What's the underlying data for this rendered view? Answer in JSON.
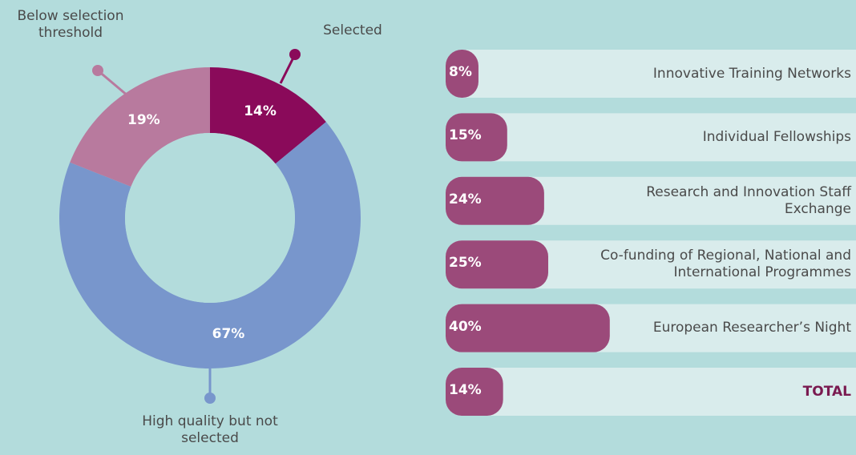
{
  "chart_data": [
    {
      "type": "donut",
      "categories": [
        "Selected",
        "High quality but not selected",
        "Below selection threshold"
      ],
      "values": [
        14,
        67,
        19
      ],
      "value_labels": [
        "14%",
        "67%",
        "19%"
      ],
      "colors": [
        "#8a0a5a",
        "#7896cc",
        "#b87a9e"
      ]
    },
    {
      "type": "hbar",
      "categories": [
        "Innovative Training Networks",
        "Individual Fellowships",
        "Research and Innovation Staff Exchange",
        "Co-funding of Regional, National and International Programmes",
        "European Researcher’s Night",
        "TOTAL"
      ],
      "values": [
        8,
        15,
        24,
        25,
        40,
        14
      ],
      "value_labels": [
        "8%",
        "15%",
        "24%",
        "25%",
        "40%",
        "14%"
      ],
      "xlim": [
        0,
        100
      ],
      "color": "#9b4a7a"
    }
  ]
}
